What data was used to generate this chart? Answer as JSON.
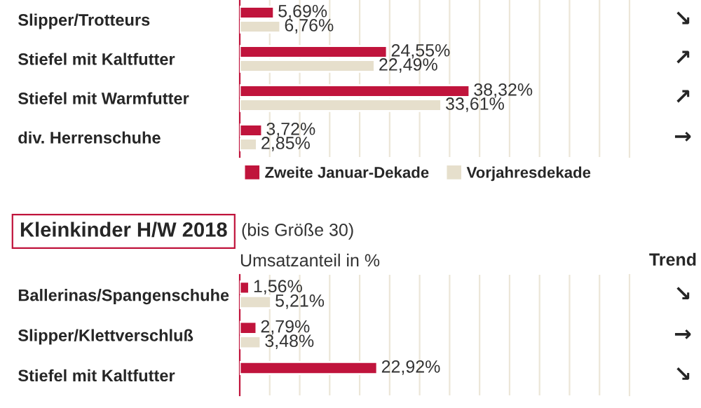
{
  "chart_data": [
    {
      "type": "bar",
      "orientation": "horizontal",
      "categories": [
        "Slipper/Trotteurs",
        "Stiefel mit Kaltfutter",
        "Stiefel mit Warmfutter",
        "div. Herrenschuhe"
      ],
      "series": [
        {
          "name": "Zweite Januar-Dekade",
          "color": "#c0143c",
          "values": [
            5.69,
            24.55,
            38.32,
            3.72
          ],
          "value_labels": [
            "5,69%",
            "24,55%",
            "38,32%",
            "3,72%"
          ]
        },
        {
          "name": "Vorjahresdekade",
          "color": "#e6dfcc",
          "values": [
            6.76,
            22.49,
            33.61,
            2.85
          ],
          "value_labels": [
            "6,76%",
            "22,49%",
            "33,61%",
            "2,85%"
          ]
        }
      ],
      "xlim": [
        0,
        65
      ],
      "xticks": [
        {
          "value": 5,
          "label": null
        },
        {
          "value": 10,
          "label": null
        },
        {
          "value": 15,
          "label": null
        },
        {
          "value": 20,
          "label": null
        },
        {
          "value": 25,
          "label": null
        },
        {
          "value": 30,
          "label": null
        },
        {
          "value": 35,
          "label": null
        },
        {
          "value": 40,
          "label": null
        },
        {
          "value": 45,
          "label": null
        },
        {
          "value": 50,
          "label": null
        },
        {
          "value": 55,
          "label": null
        },
        {
          "value": 60,
          "label": null
        }
      ],
      "grid": "x",
      "legend": "bottom",
      "tick_labels": "y",
      "annotations": [
        "↘",
        "↗",
        "↗",
        "→"
      ]
    },
    {
      "type": "bar",
      "orientation": "horizontal",
      "title": "Kleinkinder H/W 2018",
      "subtitle": "(bis Größe 30)",
      "xlabel": "Umsatzanteil in %",
      "categories": [
        "Ballerinas/Spangenschuhe",
        "Slipper/Klettverschluß",
        "Stiefel mit Kaltfutter"
      ],
      "series": [
        {
          "color": "#c0143c",
          "values": [
            1.56,
            2.79,
            22.92
          ],
          "value_labels": [
            "1,56%",
            "2,79%",
            "22,92%"
          ]
        },
        {
          "color": "#e6dfcc",
          "values": [
            5.21,
            3.48,
            null
          ],
          "value_labels": [
            "5,21%",
            "3,48%",
            null
          ]
        }
      ],
      "xlim": [
        0,
        65
      ],
      "xticks": [
        {
          "value": 5,
          "label": null
        },
        {
          "value": 10,
          "label": null
        },
        {
          "value": 15,
          "label": null
        },
        {
          "value": 20,
          "label": null
        },
        {
          "value": 25,
          "label": null
        },
        {
          "value": 30,
          "label": null
        },
        {
          "value": 35,
          "label": null
        },
        {
          "value": 40,
          "label": null
        },
        {
          "value": 45,
          "label": null
        },
        {
          "value": 50,
          "label": null
        },
        {
          "value": 55,
          "label": null
        },
        {
          "value": 60,
          "label": null
        }
      ],
      "grid": "x",
      "tick_labels": "y",
      "annotations": [
        "Trend",
        "↘",
        "→",
        "↘"
      ]
    }
  ]
}
